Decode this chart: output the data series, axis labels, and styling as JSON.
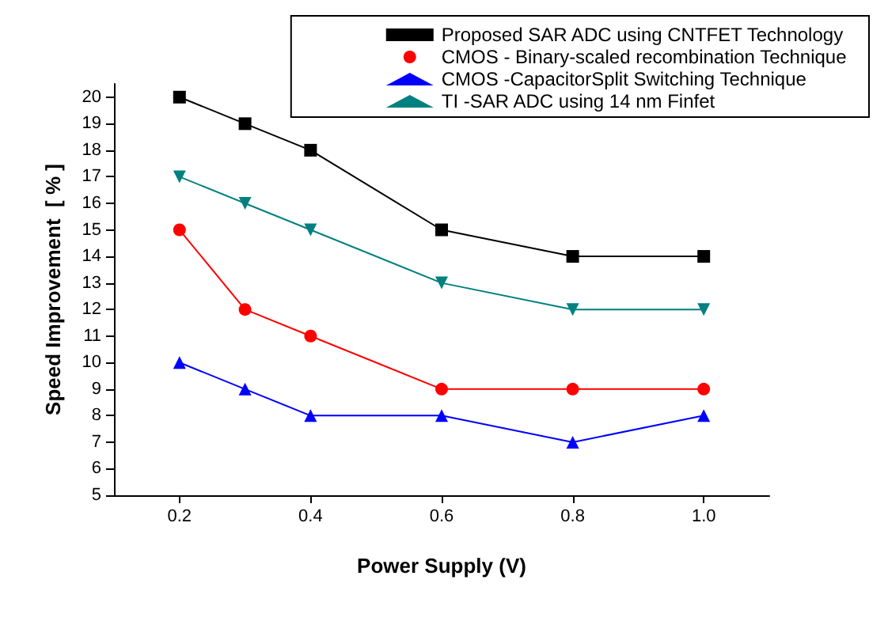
{
  "chart_data": {
    "type": "line",
    "xlabel": "Power Supply (V)",
    "ylabel": "Speed Improvement  [ % ]",
    "x": [
      0.2,
      0.3,
      0.4,
      0.6,
      0.8,
      1.0
    ],
    "series": [
      {
        "name": "Proposed SAR ADC using CNTFET Technology",
        "color": "#000000",
        "marker": "square",
        "values": [
          20,
          19,
          18,
          15,
          14,
          14
        ]
      },
      {
        "name": "CMOS - Binary-scaled recombination Technique",
        "color": "#ff0000",
        "marker": "circle",
        "values": [
          15,
          12,
          11,
          9,
          9,
          9
        ]
      },
      {
        "name": "CMOS -CapacitorSplit Switching Technique",
        "color": "#0000ff",
        "marker": "triangle",
        "values": [
          10,
          9,
          8,
          8,
          7,
          8
        ]
      },
      {
        "name": "TI -SAR ADC using 14 nm Finfet",
        "color": "#008080",
        "marker": "triangle",
        "values": [
          17,
          16,
          15,
          13,
          12,
          12
        ]
      }
    ],
    "xlim": [
      0.1,
      1.1
    ],
    "xticks": [
      0.2,
      0.4,
      0.6,
      0.8,
      {
        "value": 1.0,
        "label": "1.0"
      }
    ],
    "ylim": [
      5,
      20.5
    ],
    "yticks": [
      5,
      6,
      7,
      8,
      9,
      10,
      11,
      12,
      13,
      14,
      15,
      16,
      17,
      18,
      19,
      20
    ],
    "grid": false,
    "legend": "top right",
    "line_style": "solid"
  }
}
